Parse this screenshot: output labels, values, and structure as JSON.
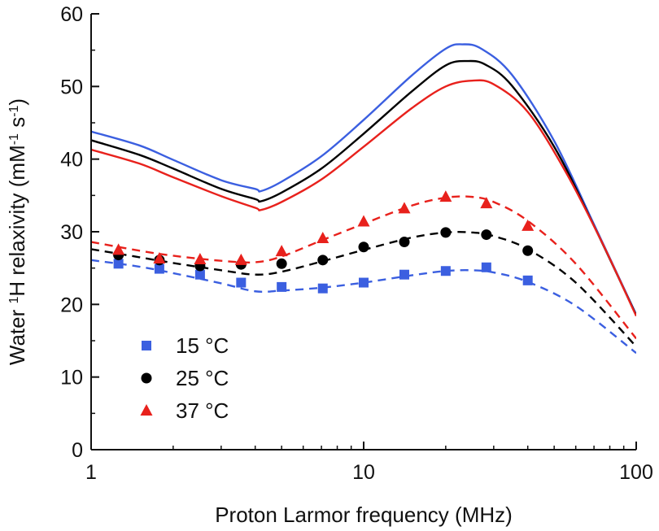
{
  "chart_data": {
    "type": "line",
    "title": "",
    "xlabel": "Proton Larmor frequency (MHz)",
    "ylabel_parts": [
      "Water ",
      "1",
      "H relaxivity (mM",
      "-1",
      " s",
      "-1",
      ")"
    ],
    "x_scale": "log",
    "xlim": [
      1,
      100
    ],
    "ylim": [
      0,
      60
    ],
    "x_ticks": [
      1,
      10,
      100
    ],
    "x_tick_labels": [
      "1",
      "10",
      "100"
    ],
    "y_ticks": [
      0,
      10,
      20,
      30,
      40,
      50,
      60
    ],
    "y_tick_labels": [
      "0",
      "10",
      "20",
      "30",
      "40",
      "50",
      "60"
    ],
    "legend": {
      "placement": "bottom-left",
      "entries": [
        {
          "label": "15 °C",
          "marker": "square",
          "color": "#3b5fe0"
        },
        {
          "label": "25 °C",
          "marker": "circle",
          "color": "#000000"
        },
        {
          "label": "37 °C",
          "marker": "triangle",
          "color": "#e8211c"
        }
      ]
    },
    "series": [
      {
        "name": "15 °C",
        "color": "#3b5fe0",
        "marker": "square",
        "points": {
          "x": [
            1.26,
            1.78,
            2.51,
            3.55,
            5.0,
            7.08,
            10.0,
            14.1,
            20.0,
            28.2,
            40.0
          ],
          "y": [
            25.6,
            24.9,
            24.1,
            23.0,
            22.4,
            22.2,
            23.0,
            24.1,
            24.6,
            25.1,
            23.3
          ]
        },
        "fit_dashed": {
          "x": [
            1.0,
            1.5,
            2.0,
            3.0,
            4.0,
            5.0,
            7.0,
            10.0,
            15.0,
            20.0,
            25.0,
            30.0,
            40.0,
            60.0,
            100.0
          ],
          "y": [
            26.1,
            25.2,
            24.3,
            22.9,
            21.8,
            21.9,
            22.3,
            23.0,
            24.0,
            24.6,
            24.7,
            24.4,
            23.1,
            19.8,
            13.3
          ]
        },
        "theory_solid": {
          "x": [
            1.0,
            1.5,
            2.0,
            3.0,
            4.0,
            4.2,
            5.0,
            7.0,
            10.0,
            15.0,
            20.0,
            23.0,
            27.0,
            35.0,
            50.0,
            70.0,
            100.0
          ],
          "y": [
            43.8,
            41.9,
            39.9,
            37.1,
            35.9,
            35.6,
            36.9,
            40.4,
            45.4,
            51.5,
            55.2,
            55.8,
            55.2,
            51.6,
            42.5,
            31.0,
            18.6
          ]
        }
      },
      {
        "name": "25 °C",
        "color": "#000000",
        "marker": "circle",
        "points": {
          "x": [
            1.26,
            1.78,
            2.51,
            3.55,
            5.0,
            7.08,
            10.0,
            14.1,
            20.0,
            28.2,
            40.0
          ],
          "y": [
            26.8,
            26.1,
            25.3,
            25.5,
            25.6,
            26.1,
            27.9,
            28.6,
            29.9,
            29.6,
            27.4
          ]
        },
        "fit_dashed": {
          "x": [
            1.0,
            1.5,
            2.0,
            3.0,
            4.0,
            5.0,
            7.0,
            10.0,
            15.0,
            20.0,
            25.0,
            30.0,
            40.0,
            60.0,
            100.0
          ],
          "y": [
            27.6,
            26.5,
            25.7,
            24.7,
            24.1,
            24.5,
            25.9,
            27.5,
            29.2,
            29.9,
            29.9,
            29.4,
            27.6,
            23.0,
            14.2
          ]
        },
        "theory_solid": {
          "x": [
            1.0,
            1.5,
            2.0,
            3.0,
            4.0,
            4.2,
            5.0,
            7.0,
            10.0,
            15.0,
            20.0,
            24.0,
            28.0,
            35.0,
            50.0,
            70.0,
            100.0
          ],
          "y": [
            42.6,
            40.6,
            38.7,
            35.9,
            34.5,
            34.2,
            35.4,
            38.7,
            43.5,
            49.3,
            52.9,
            53.5,
            53.0,
            50.1,
            41.7,
            30.8,
            18.5
          ]
        }
      },
      {
        "name": "37 °C",
        "color": "#e8211c",
        "marker": "triangle",
        "points": {
          "x": [
            1.26,
            1.78,
            2.51,
            3.55,
            5.0,
            7.08,
            10.0,
            14.1,
            20.0,
            28.2,
            40.0
          ],
          "y": [
            27.5,
            26.3,
            26.2,
            26.1,
            27.3,
            29.1,
            31.4,
            33.2,
            34.8,
            33.9,
            30.8
          ]
        },
        "fit_dashed": {
          "x": [
            1.0,
            1.5,
            2.0,
            3.0,
            4.0,
            5.0,
            7.0,
            10.0,
            15.0,
            20.0,
            25.0,
            30.0,
            40.0,
            60.0,
            100.0
          ],
          "y": [
            28.6,
            27.4,
            26.7,
            26.0,
            25.8,
            26.6,
            28.8,
            31.1,
            33.6,
            34.7,
            34.8,
            34.1,
            31.5,
            25.6,
            15.3
          ]
        },
        "theory_solid": {
          "x": [
            1.0,
            1.5,
            2.0,
            3.0,
            4.0,
            4.2,
            5.0,
            7.0,
            10.0,
            15.0,
            20.0,
            25.0,
            30.0,
            40.0,
            55.0,
            75.0,
            100.0
          ],
          "y": [
            41.3,
            39.4,
            37.5,
            34.9,
            33.3,
            33.0,
            34.1,
            37.2,
            41.7,
            47.0,
            50.0,
            50.8,
            50.3,
            46.5,
            38.3,
            28.5,
            18.4
          ]
        }
      }
    ]
  }
}
